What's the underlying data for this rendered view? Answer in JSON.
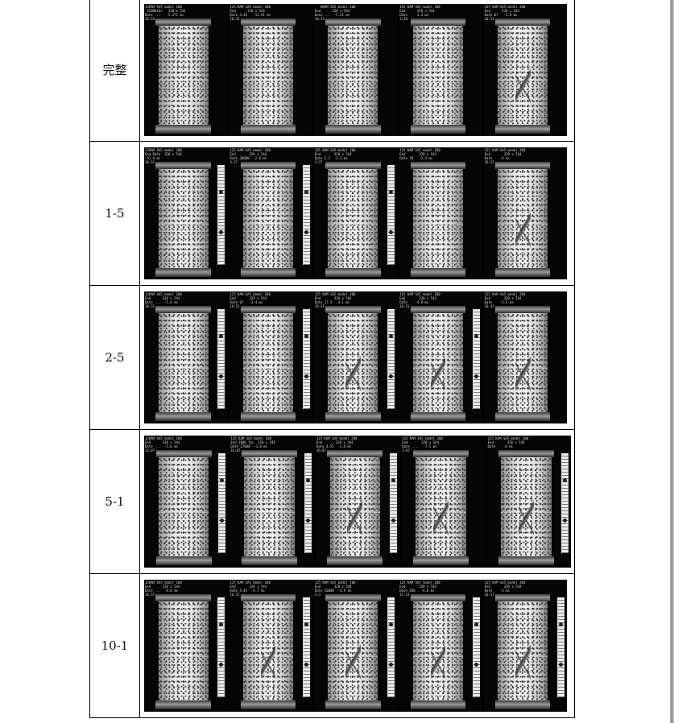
{
  "rows": [
    {
      "label": "完整",
      "frames": [
        {
          "hud": "12KAM SA5 model 200\n 35000fps   320 x 544\nDate ...   -5.271 ms\n16:33",
          "damaged": false,
          "ruler": false
        },
        {
          "hud": "125 KAM SA5 model 200\nEnd      320 x 544\nDate 4.45   -11.41 ms\n16:33",
          "damaged": false,
          "ruler": false
        },
        {
          "hud": "   HKAM SA5 model 200\nEnd      320 x 544\nDate ...  -5.21 ms\n16:33",
          "damaged": false,
          "ruler": false
        },
        {
          "hud": "125 KAM SA5 model 200\nEnd      320 x 544\nDate    -3.4 ms\n3:20",
          "damaged": false,
          "ruler": false
        },
        {
          "hud": "125 KAM SA5 model 200\nEnd      320 x 544\nDate 07   -2.8 ms\n16:33",
          "damaged": true,
          "ruler": false
        }
      ]
    },
    {
      "label": "1-5",
      "frames": [
        {
          "hud": "12KAM SA5 model 200\nEnd Date  320 x 544\n-31.6 ms\n16:31",
          "damaged": false,
          "ruler": true
        },
        {
          "hud": "125 KAM SA5 model 200\nEnd       320 x 544\nDate 20000  -2.8 ms\n3:27",
          "damaged": false,
          "ruler": true
        },
        {
          "hud": "125 KAM SA5 model 200\nEnd       320 x 544\nDate 2.2  -2.3 ms\n3:27",
          "damaged": false,
          "ruler": true
        },
        {
          "hud": "125 KAM SA5 model 200\nEnd       320 x 544\nDate 70   -3.4 ms",
          "damaged": false,
          "ruler": false
        },
        {
          "hud": "125 KAM SA5 model 200\nEnd       320 x 544\nDate    -6 ms\n16:32",
          "damaged": true,
          "ruler": false
        }
      ]
    },
    {
      "label": "2-5",
      "frames": [
        {
          "hud": "12KAM SA5 model 200\nEnd      320 x 544\nDate ...  -5.4 ms\n16:31",
          "damaged": false,
          "ruler": true
        },
        {
          "hud": "125 KAM SA5 model 200\nEnd       320 x 544\nDate 07   -2.4 ms\n16:31",
          "damaged": false,
          "ruler": true
        },
        {
          "hud": "125 KAM SA5 model 200\nEnd       320 x 544\nDate 17.5  -4.1 ms\n16:31",
          "damaged": true,
          "ruler": true
        },
        {
          "hud": "125 KAM SA5 model 200\nEnd       320 x 544\nDate    -4.8 ms\n16:31",
          "damaged": true,
          "ruler": true
        },
        {
          "hud": "125 KAM SA5 model 200\nEnd       320 x 544\nDate    -2.1 ms\n16:31",
          "damaged": true,
          "ruler": false
        }
      ]
    },
    {
      "label": "5-1",
      "frames": [
        {
          "hud": "12KAM SA5 model 200\nEnd      320 x 544\nDate ...  -5.6 ms\n13:07",
          "damaged": false,
          "ruler": true
        },
        {
          "hud": "125 KAM SA5 model 200\nEnd 1000 fps  320 x 544\nDate 27000  -1.9 ms\n16:07",
          "damaged": false,
          "ruler": true
        },
        {
          "hud": "125 KAM SA5 model 200\nEnd       320 x 544\nDate 4.55  -1.8 ms\n16:07",
          "damaged": true,
          "ruler": true
        },
        {
          "hud": "125 KAM SA5 model 200\nEnd       320 x 544\nDate ...   -7.5 ms\n3:07",
          "damaged": true,
          "ruler": false
        },
        {
          "hud": "125 KAM SA5 model 200\nEnd       320 x 544\nDate    -6 ms",
          "damaged": true,
          "ruler": true
        }
      ]
    },
    {
      "label": "10-1",
      "frames": [
        {
          "hud": "12KAM SA5 model 200\nEnd      320 x 544\nDate ...  -4.8 ms\n16:37",
          "damaged": false,
          "ruler": true
        },
        {
          "hud": "125 KAM SA5 model 200\nEnd       320 x 544\nDate 4.45  -4.7 ms\n16:37",
          "damaged": true,
          "ruler": true
        },
        {
          "hud": "125 KAM SA5 model 200\nEnd       320 x 544\nDate 20000  -3.9 ms\n3:3",
          "damaged": true,
          "ruler": true
        },
        {
          "hud": "125 KAM SA5 model 200\nEnd       320 x 544\nDate 200   -4.0 ms\n11:33",
          "damaged": true,
          "ruler": true
        },
        {
          "hud": "125 KAM SA5 model 200\nEnd       320 x 544\nDate    -3 ms\n16:37",
          "damaged": true,
          "ruler": true
        }
      ]
    }
  ]
}
